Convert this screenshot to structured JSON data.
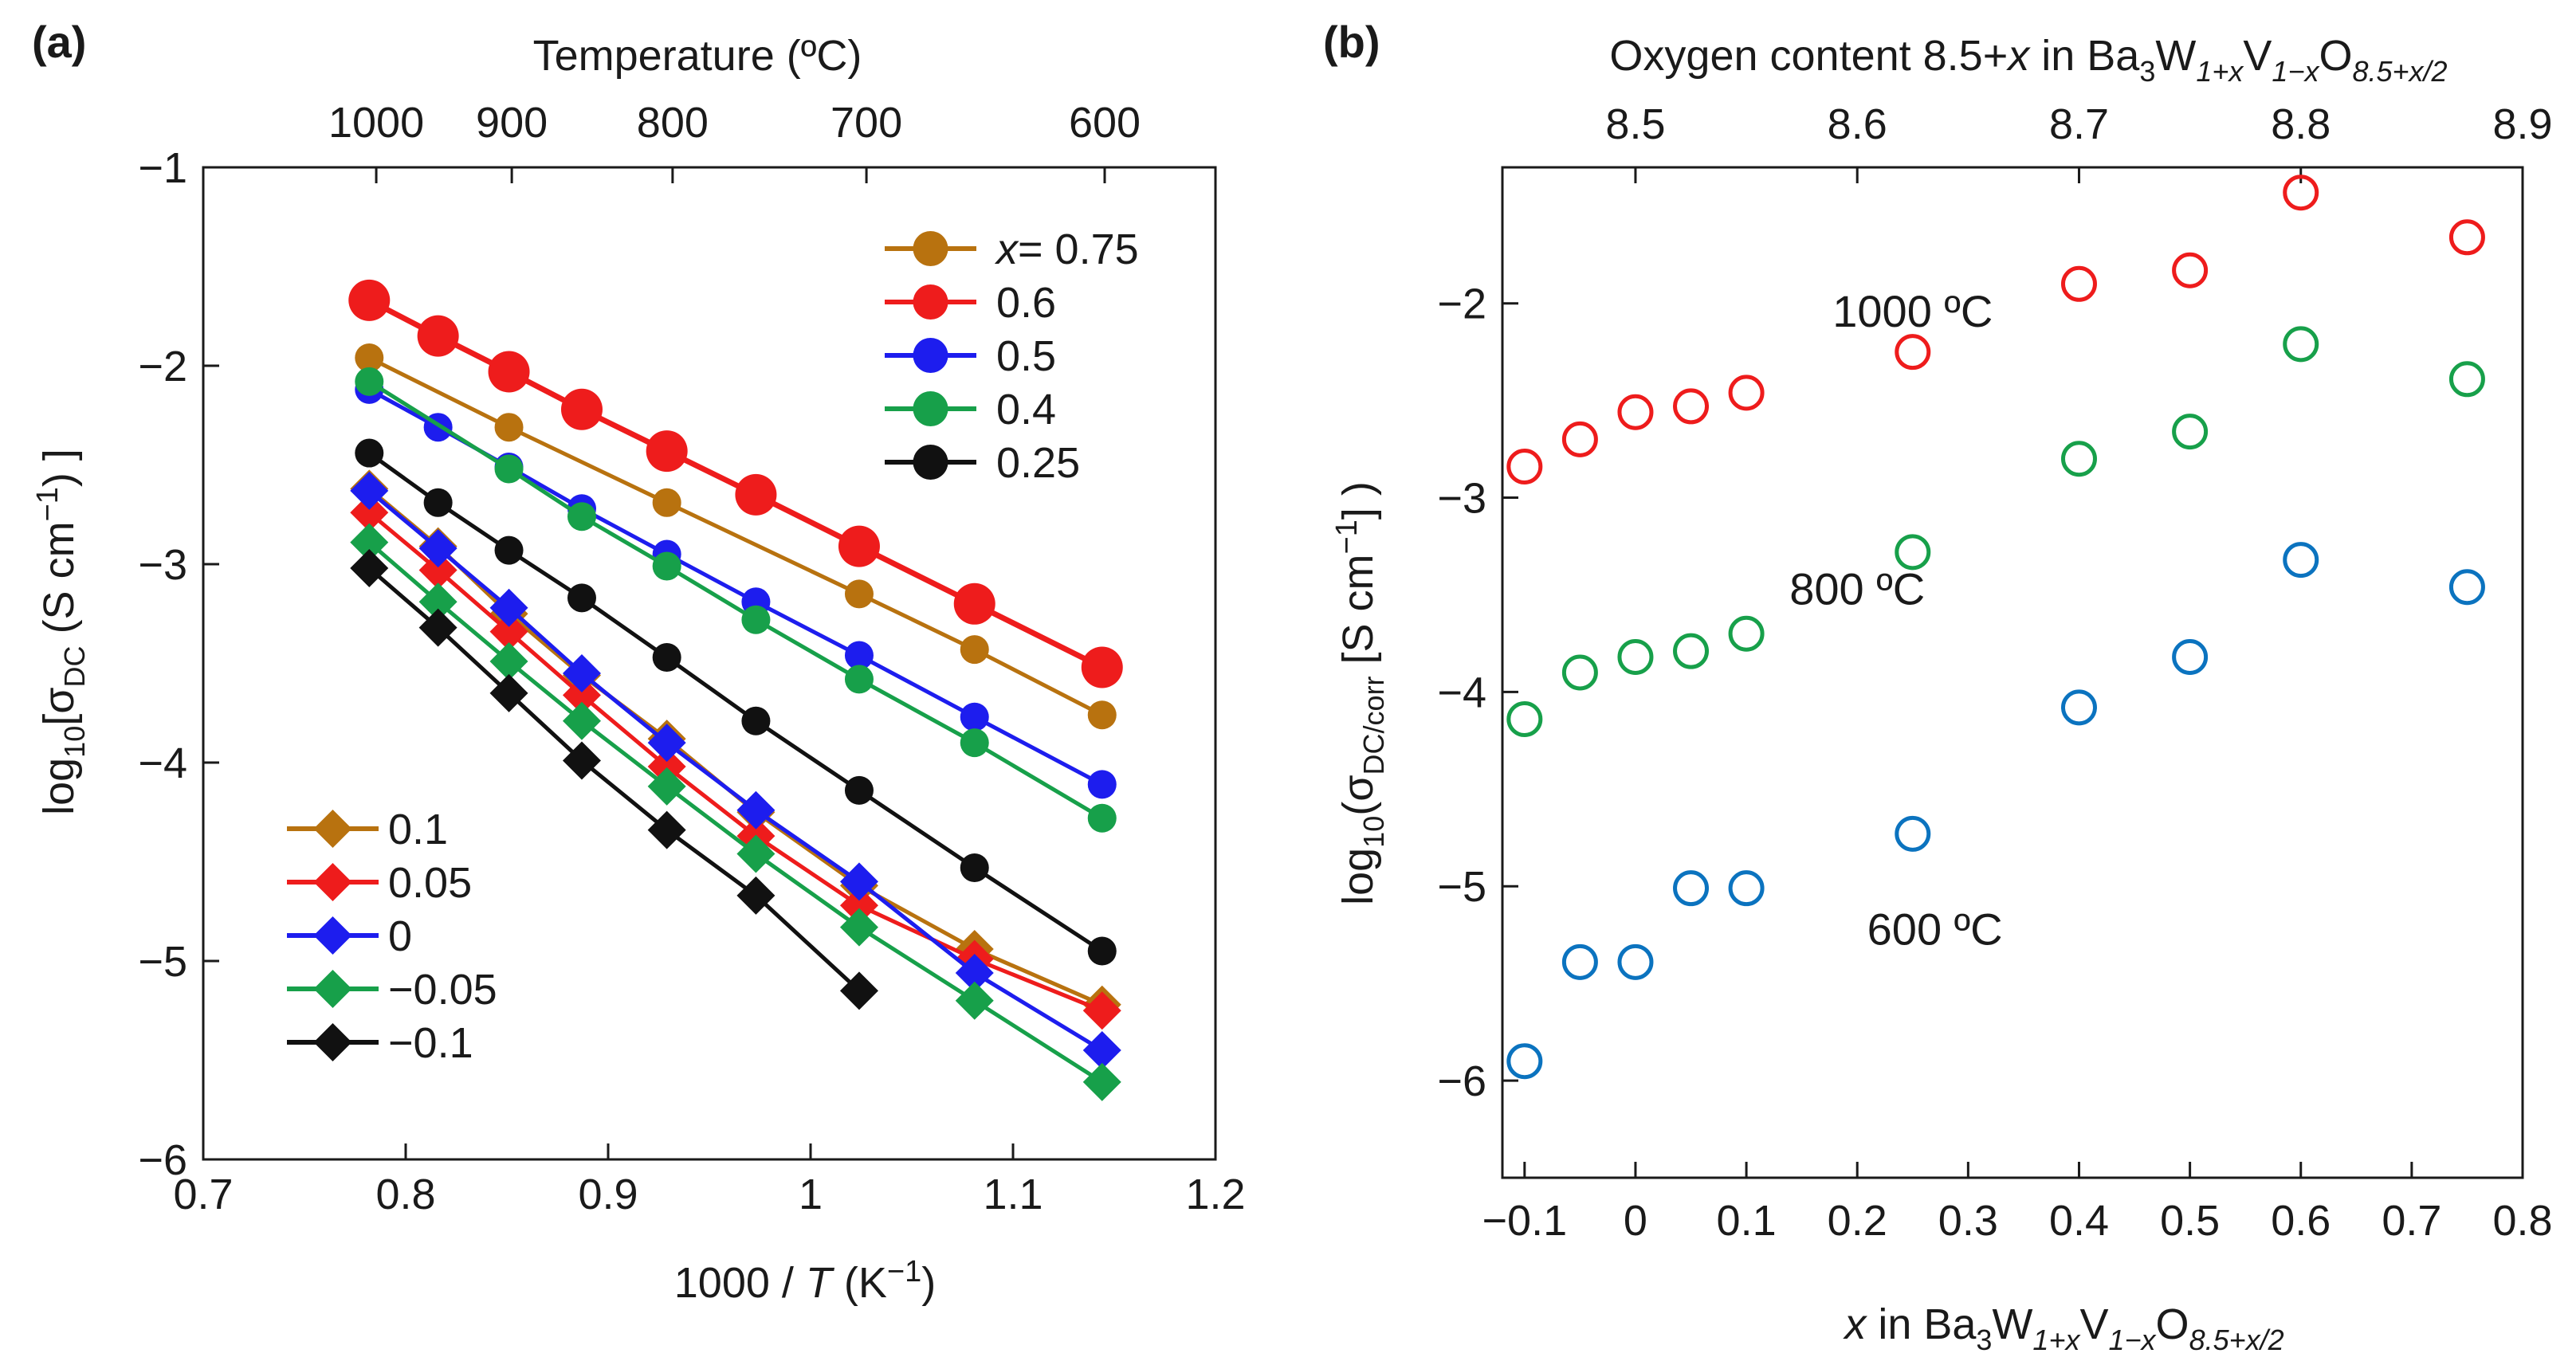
{
  "panel_labels": {
    "a": "(a)",
    "b": "(b)"
  },
  "chart_data": [
    {
      "panel": "(a)",
      "type": "line",
      "top_axis": {
        "title": "Temperature (ºC)",
        "tick_labels": [
          "1000",
          "900",
          "800",
          "700",
          "600"
        ],
        "tick_values_celsius": [
          1000,
          900,
          800,
          700,
          600
        ]
      },
      "xlabel": {
        "prefix": "1000 / ",
        "var": "T",
        "suffix": " (K",
        "sup": "−1",
        "close": ")"
      },
      "ylabel": {
        "pre": "log",
        "sub10": "10",
        "mid": "[σ",
        "subdc": "DC",
        "units": "  (S cm",
        "sup": "−1",
        "close": ") ]"
      },
      "xlim": [
        0.7,
        1.2
      ],
      "ylim": [
        -6,
        -1
      ],
      "xticks": [
        0.7,
        0.8,
        0.9,
        1.0,
        1.1,
        1.2
      ],
      "xtick_labels": [
        "0.7",
        "0.8",
        "0.9",
        "1",
        "1.1",
        "1.2"
      ],
      "yticks": [
        -6,
        -5,
        -4,
        -3,
        -2,
        -1
      ],
      "ytick_labels": [
        "−6",
        "−5",
        "−4",
        "−3",
        "−2",
        "−1"
      ],
      "x": [
        0.782,
        0.816,
        0.851,
        0.887,
        0.929,
        0.973,
        1.024,
        1.081,
        1.144
      ],
      "legend_circles": {
        "first_prefix": "x",
        "first_rest": "= 0.75",
        "labels": [
          "0.6",
          "0.5",
          "0.4",
          "0.25"
        ]
      },
      "legend_diamonds": {
        "labels": [
          "0.1",
          "0.05",
          "0",
          "−0.05",
          "−0.1"
        ]
      },
      "series": [
        {
          "name": "0.75",
          "marker": "circle",
          "color": "#b8720f",
          "size": "small",
          "values": [
            -1.96,
            null,
            -2.31,
            null,
            -2.69,
            null,
            -3.15,
            -3.43,
            -3.76
          ]
        },
        {
          "name": "0.6",
          "marker": "circle",
          "color": "#ee1c1c",
          "size": "large",
          "values": [
            -1.67,
            -1.85,
            -2.03,
            -2.22,
            -2.43,
            -2.65,
            -2.91,
            -3.2,
            -3.52
          ]
        },
        {
          "name": "0.5",
          "marker": "circle",
          "color": "#1d1dee",
          "size": "small",
          "values": [
            -2.12,
            -2.31,
            -2.51,
            -2.72,
            -2.95,
            -3.19,
            -3.46,
            -3.77,
            -4.11
          ]
        },
        {
          "name": "0.4",
          "marker": "circle",
          "color": "#17a04a",
          "size": "small",
          "values": [
            -2.08,
            null,
            -2.52,
            -2.76,
            -3.01,
            -3.28,
            -3.58,
            -3.9,
            -4.28
          ]
        },
        {
          "name": "0.25",
          "marker": "circle",
          "color": "#111111",
          "size": "small",
          "values": [
            -2.44,
            -2.69,
            -2.93,
            -3.17,
            -3.47,
            -3.79,
            -4.14,
            -4.53,
            -4.95
          ]
        },
        {
          "name": "0.1",
          "marker": "diamond",
          "color": "#b8720f",
          "values": [
            -2.62,
            -2.91,
            -3.25,
            -3.56,
            -3.88,
            -4.25,
            -4.62,
            -4.94,
            -5.22
          ]
        },
        {
          "name": "0.05",
          "marker": "diamond",
          "color": "#ee1c1c",
          "values": [
            -2.74,
            -3.03,
            -3.34,
            -3.66,
            -4.02,
            -4.37,
            -4.72,
            -4.99,
            -5.25
          ]
        },
        {
          "name": "0",
          "marker": "diamond",
          "color": "#1d1dee",
          "values": [
            -2.63,
            -2.92,
            -3.22,
            -3.55,
            -3.9,
            -4.24,
            -4.6,
            -5.06,
            -5.45
          ]
        },
        {
          "name": "−0.05",
          "marker": "diamond",
          "color": "#17a04a",
          "values": [
            -2.89,
            -3.19,
            -3.49,
            -3.79,
            -4.12,
            -4.46,
            -4.83,
            -5.2,
            -5.61
          ]
        },
        {
          "name": "−0.1",
          "marker": "diamond",
          "color": "#111111",
          "values": [
            -3.02,
            -3.32,
            -3.65,
            -3.99,
            -4.34,
            -4.67,
            -5.15,
            null,
            null
          ]
        }
      ]
    },
    {
      "panel": "(b)",
      "type": "scatter",
      "top_axis": {
        "title_prefix": "Oxygen content 8.5+",
        "title_var": "x",
        "title_mid": " in Ba",
        "sub1": "3",
        "w": "W",
        "sub2": "1+x",
        "v": "V",
        "sub3": "1−x",
        "o": "O",
        "sub4": "8.5+x/2",
        "tick_labels": [
          "8.5",
          "8.6",
          "8.7",
          "8.8",
          "8.9"
        ],
        "tick_values": [
          8.5,
          8.6,
          8.7,
          8.8,
          8.9
        ]
      },
      "xlabel": {
        "var": "x",
        "mid": " in Ba",
        "sub1": "3",
        "w": "W",
        "sub2": "1+x",
        "v": "V",
        "sub3": "1−x",
        "o": "O",
        "sub4": "8.5+x/2"
      },
      "ylabel": {
        "pre": "log",
        "sub10": "10",
        "mid": "(σ",
        "subdc": "DC/corr",
        "units": " [S cm",
        "sup": "−1",
        "close": "] )"
      },
      "xlim": [
        -0.12,
        0.8
      ],
      "ylim": [
        -6.5,
        -1.3
      ],
      "xticks": [
        -0.1,
        0,
        0.1,
        0.2,
        0.3,
        0.4,
        0.5,
        0.6,
        0.7,
        0.8
      ],
      "xtick_labels": [
        "−0.1",
        "0",
        "0.1",
        "0.2",
        "0.3",
        "0.4",
        "0.5",
        "0.6",
        "0.7",
        "0.8"
      ],
      "yticks": [
        -6,
        -5,
        -4,
        -3,
        -2
      ],
      "ytick_labels": [
        "−6",
        "−5",
        "−4",
        "−3",
        "−2"
      ],
      "x": [
        -0.1,
        -0.05,
        0,
        0.05,
        0.1,
        0.25,
        0.4,
        0.5,
        0.6,
        0.75
      ],
      "series": [
        {
          "name": "1000 ºC",
          "color": "#ee1c1c",
          "values": [
            -2.84,
            -2.7,
            -2.56,
            -2.53,
            -2.46,
            -2.25,
            -1.9,
            -1.83,
            -1.43,
            -1.66
          ]
        },
        {
          "name": "800 ºC",
          "color": "#17a04a",
          "values": [
            -4.14,
            -3.9,
            -3.82,
            -3.79,
            -3.7,
            -3.28,
            -2.8,
            -2.66,
            -2.21,
            -2.39
          ]
        },
        {
          "name": "600 ºC",
          "color": "#0b73bf",
          "values": [
            -5.9,
            -5.39,
            -5.39,
            -5.01,
            -5.01,
            -4.73,
            -4.08,
            -3.82,
            -3.32,
            -3.46
          ]
        }
      ],
      "annotations": [
        "1000 ºC",
        "800 ºC",
        "600 ºC"
      ]
    }
  ]
}
